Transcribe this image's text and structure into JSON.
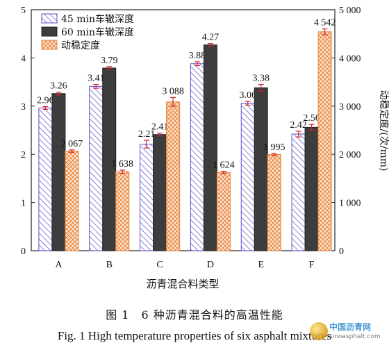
{
  "chart_data": {
    "type": "bar",
    "categories": [
      "A",
      "B",
      "C",
      "D",
      "E",
      "F"
    ],
    "xlabel": "沥青混合料类型",
    "ylabel_left": "",
    "ylabel_right": "动稳定度/(次/mm)",
    "ylim_left": [
      0,
      5
    ],
    "ylim_right": [
      0,
      5000
    ],
    "yticks_left": [
      "0",
      "1",
      "2",
      "3",
      "4",
      "5"
    ],
    "yticks_right": [
      "0",
      "1 000",
      "2 000",
      "3 000",
      "4 000",
      "5 000"
    ],
    "legend_position": "top-left",
    "series": [
      {
        "name": "45 min车辙深度",
        "axis": "left",
        "values": [
          2.96,
          3.41,
          2.21,
          3.88,
          3.06,
          2.42
        ],
        "labels": [
          "2.96",
          "3.41",
          "2.21",
          "3.88",
          "3.06",
          "2.42"
        ],
        "errors": [
          0.03,
          0.04,
          0.08,
          0.04,
          0.04,
          0.06
        ],
        "color": "#5a4fc7",
        "pattern": "diagonal"
      },
      {
        "name": "60 min车辙深度",
        "axis": "left",
        "values": [
          3.26,
          3.79,
          2.41,
          4.27,
          3.38,
          2.56
        ],
        "labels": [
          "3.26",
          "3.79",
          "2.41",
          "4.27",
          "3.38",
          "2.56"
        ],
        "errors": [
          0.03,
          0.03,
          0.03,
          0.03,
          0.07,
          0.06
        ],
        "color": "#3d3d3d",
        "pattern": "solid"
      },
      {
        "name": "动稳定度",
        "axis": "right",
        "values": [
          2067,
          1638,
          3088,
          1624,
          1995,
          4542
        ],
        "labels": [
          "2 067",
          "1 638",
          "3 088",
          "1 624",
          "1 995",
          "4 542"
        ],
        "errors": [
          25,
          35,
          90,
          25,
          25,
          60
        ],
        "color": "#e8833a",
        "pattern": "crosshatch"
      }
    ]
  },
  "caption": {
    "cn": "图 1　6 种沥青混合料的高温性能",
    "en": "Fig. 1 High temperature properties of six asphalt mixtures"
  },
  "watermark": {
    "line1": "中国沥青网",
    "line2": "sinoasphalt.com"
  }
}
